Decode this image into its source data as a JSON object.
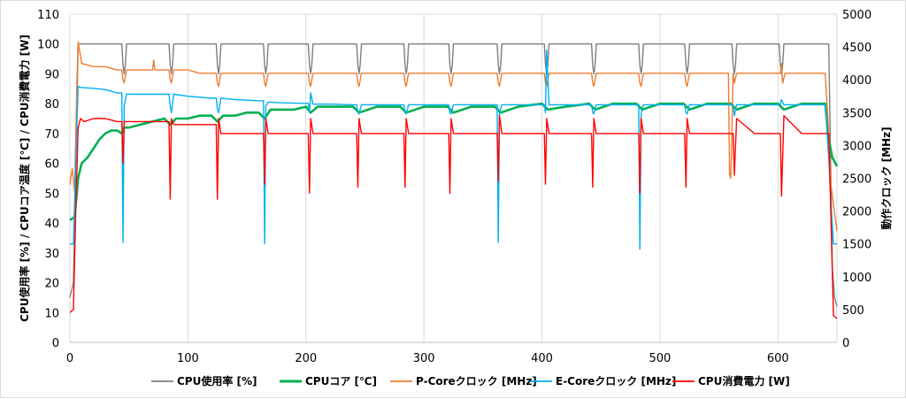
{
  "chart_data": {
    "type": "line",
    "title": "",
    "xlabel": "",
    "ylabel_left": "CPU使用率 [%] / CPUコア温度 [℃] / CPU消費電力 [W]",
    "ylabel_right": "動作クロック [MHz]",
    "xlim": [
      0,
      650
    ],
    "ylim_left": [
      0,
      110
    ],
    "ylim_right": [
      0,
      5000
    ],
    "x_ticks": [
      0,
      100,
      200,
      300,
      400,
      500,
      600
    ],
    "y_left_ticks": [
      0,
      10,
      20,
      30,
      40,
      50,
      60,
      70,
      80,
      90,
      100,
      110
    ],
    "y_right_ticks": [
      0,
      500,
      1000,
      1500,
      2000,
      2500,
      3000,
      3500,
      4000,
      4500,
      5000
    ],
    "grid": "vertical-only",
    "legend_position": "bottom",
    "cycle_starts": [
      5,
      46,
      86,
      126,
      166,
      204,
      245,
      285,
      323,
      364,
      404,
      444,
      484,
      523,
      563,
      603,
      645
    ],
    "series": [
      {
        "name": "CPU使用率 [%]",
        "axis": "left",
        "color": "#7f7f7f",
        "x": [
          0,
          3,
          5,
          7,
          44,
          45,
          46,
          47,
          48,
          84,
          85,
          86,
          87,
          88,
          124,
          125,
          126,
          127,
          128,
          164,
          165,
          166,
          167,
          168,
          202,
          203,
          204,
          205,
          206,
          243,
          244,
          245,
          246,
          247,
          283,
          284,
          285,
          286,
          287,
          321,
          322,
          323,
          324,
          325,
          362,
          363,
          364,
          365,
          366,
          402,
          403,
          404,
          405,
          406,
          442,
          443,
          444,
          445,
          446,
          482,
          483,
          484,
          485,
          486,
          521,
          522,
          523,
          524,
          525,
          561,
          562,
          563,
          564,
          565,
          601,
          602,
          603,
          604,
          605,
          643,
          646,
          648,
          650
        ],
        "values": [
          15,
          20,
          60,
          100,
          100,
          93,
          90,
          93,
          100,
          100,
          93,
          90,
          93,
          100,
          100,
          93,
          90,
          93,
          100,
          100,
          93,
          90,
          93,
          100,
          100,
          93,
          90,
          93,
          100,
          100,
          93,
          90,
          93,
          100,
          100,
          93,
          90,
          93,
          100,
          100,
          93,
          90,
          93,
          100,
          100,
          93,
          90,
          93,
          100,
          100,
          93,
          90,
          93,
          100,
          100,
          93,
          90,
          93,
          100,
          100,
          93,
          90,
          93,
          100,
          100,
          93,
          90,
          93,
          100,
          100,
          93,
          90,
          93,
          100,
          100,
          93,
          90,
          93,
          100,
          100,
          25,
          15,
          12
        ]
      },
      {
        "name": "CPUコア [℃]",
        "axis": "left",
        "color": "#00b050",
        "x": [
          0,
          4,
          7,
          10,
          15,
          20,
          25,
          30,
          35,
          40,
          44,
          46,
          50,
          60,
          70,
          80,
          85,
          90,
          100,
          110,
          120,
          125,
          130,
          140,
          150,
          160,
          165,
          170,
          180,
          190,
          200,
          204,
          210,
          220,
          240,
          245,
          260,
          280,
          285,
          300,
          320,
          325,
          340,
          360,
          365,
          380,
          400,
          405,
          420,
          440,
          445,
          460,
          480,
          485,
          500,
          520,
          525,
          540,
          560,
          565,
          580,
          600,
          605,
          620,
          640,
          643,
          646,
          650
        ],
        "values": [
          41,
          42,
          55,
          60,
          62,
          65,
          68,
          70,
          71,
          71,
          70,
          72,
          72,
          73,
          74,
          75,
          73,
          75,
          75,
          76,
          76,
          74,
          76,
          76,
          77,
          77,
          75,
          78,
          78,
          78,
          79,
          77,
          79,
          79,
          79,
          77,
          79,
          79,
          77,
          79,
          79,
          77,
          79,
          79,
          77,
          79,
          80,
          78,
          79,
          80,
          78,
          80,
          80,
          78,
          80,
          80,
          78,
          80,
          80,
          78,
          80,
          80,
          78,
          80,
          80,
          68,
          62,
          59
        ]
      },
      {
        "name": "P-Coreクロック [MHz]",
        "axis": "right",
        "color": "#ed7d31",
        "x": [
          0,
          2,
          4,
          6,
          7,
          10,
          20,
          30,
          40,
          44,
          45,
          46,
          48,
          60,
          70,
          71,
          72,
          80,
          84,
          85,
          86,
          88,
          100,
          110,
          120,
          124,
          125,
          126,
          128,
          140,
          150,
          160,
          164,
          165,
          166,
          168,
          180,
          190,
          200,
          202,
          203,
          204,
          206,
          220,
          240,
          243,
          244,
          245,
          247,
          260,
          280,
          283,
          284,
          285,
          287,
          300,
          320,
          321,
          322,
          323,
          325,
          340,
          360,
          362,
          363,
          364,
          366,
          380,
          400,
          402,
          403,
          404,
          406,
          420,
          440,
          442,
          443,
          444,
          446,
          460,
          480,
          482,
          483,
          484,
          486,
          500,
          520,
          521,
          522,
          523,
          525,
          540,
          558,
          559,
          560,
          562,
          563,
          565,
          580,
          600,
          602,
          603,
          604,
          606,
          620,
          640,
          643,
          645,
          647,
          650
        ],
        "values": [
          2400,
          2650,
          2300,
          4000,
          4580,
          4250,
          4200,
          4200,
          4150,
          4150,
          4000,
          3950,
          4150,
          4150,
          4150,
          4300,
          4150,
          4150,
          4150,
          4000,
          3950,
          4150,
          4150,
          4100,
          4100,
          4100,
          3950,
          3900,
          4100,
          4100,
          4100,
          4100,
          4100,
          3950,
          3900,
          4100,
          4100,
          4100,
          4100,
          4100,
          3950,
          3900,
          4100,
          4100,
          4100,
          4100,
          3950,
          3900,
          4100,
          4100,
          4100,
          4100,
          3950,
          3900,
          4100,
          4100,
          4100,
          4100,
          3950,
          3900,
          4100,
          4100,
          4100,
          4100,
          3950,
          3900,
          4100,
          4100,
          4100,
          4100,
          3950,
          3900,
          4100,
          4100,
          4100,
          4100,
          3950,
          3900,
          4100,
          4100,
          4100,
          4100,
          3950,
          3900,
          4100,
          4100,
          4100,
          4100,
          3950,
          3900,
          4100,
          4100,
          4100,
          2550,
          2500,
          4100,
          3950,
          4100,
          4100,
          4100,
          4100,
          4250,
          3950,
          4100,
          4100,
          4100,
          3200,
          2400,
          2100,
          1700
        ]
      },
      {
        "name": "E-Coreクロック [MHz]",
        "axis": "right",
        "color": "#00b0f0",
        "x": [
          0,
          3,
          5,
          7,
          10,
          20,
          30,
          40,
          44,
          45,
          46,
          48,
          60,
          80,
          84,
          85,
          86,
          88,
          100,
          120,
          124,
          125,
          126,
          128,
          140,
          160,
          164,
          165,
          166,
          168,
          180,
          200,
          202,
          203,
          204,
          206,
          220,
          240,
          243,
          244,
          245,
          247,
          260,
          280,
          283,
          284,
          285,
          287,
          300,
          320,
          321,
          322,
          323,
          325,
          340,
          360,
          362,
          363,
          364,
          366,
          380,
          400,
          402,
          403,
          404,
          406,
          420,
          440,
          442,
          443,
          444,
          446,
          460,
          480,
          482,
          483,
          484,
          486,
          500,
          520,
          521,
          522,
          523,
          525,
          540,
          560,
          562,
          563,
          565,
          580,
          600,
          602,
          603,
          605,
          620,
          640,
          643,
          645,
          647,
          650
        ],
        "values": [
          1500,
          1500,
          2800,
          3900,
          3880,
          3870,
          3850,
          3800,
          3800,
          1520,
          3600,
          3780,
          3780,
          3780,
          3780,
          3600,
          3500,
          3780,
          3750,
          3720,
          3720,
          3550,
          3500,
          3720,
          3700,
          3680,
          3680,
          1500,
          3600,
          3660,
          3650,
          3640,
          3640,
          3500,
          3800,
          3630,
          3630,
          3620,
          3620,
          3500,
          3480,
          3620,
          3620,
          3620,
          3620,
          3500,
          3480,
          3620,
          3620,
          3620,
          3620,
          3500,
          3480,
          3620,
          3620,
          3620,
          3620,
          1520,
          3480,
          3620,
          3620,
          3620,
          3620,
          3500,
          4450,
          3620,
          3620,
          3620,
          3620,
          3500,
          3480,
          3620,
          3620,
          3620,
          3620,
          1420,
          3480,
          3620,
          3620,
          3620,
          3620,
          3500,
          3480,
          3620,
          3620,
          3620,
          3620,
          3450,
          3620,
          3620,
          3620,
          3620,
          3700,
          3620,
          3620,
          3620,
          2800,
          2100,
          1500,
          1500
        ]
      },
      {
        "name": "CPU消費電力 [W]",
        "axis": "left",
        "color": "#ff0000",
        "x": [
          0,
          3,
          5,
          7,
          9,
          12,
          20,
          30,
          40,
          44,
          45,
          46,
          48,
          60,
          80,
          84,
          85,
          86,
          88,
          100,
          120,
          124,
          125,
          126,
          128,
          140,
          160,
          164,
          165,
          166,
          168,
          180,
          200,
          202,
          203,
          204,
          206,
          220,
          240,
          243,
          244,
          245,
          247,
          260,
          280,
          283,
          284,
          285,
          287,
          300,
          320,
          321,
          322,
          323,
          325,
          340,
          360,
          362,
          363,
          364,
          366,
          380,
          400,
          402,
          403,
          404,
          406,
          420,
          440,
          442,
          443,
          444,
          446,
          460,
          480,
          482,
          483,
          484,
          486,
          500,
          520,
          521,
          522,
          523,
          525,
          540,
          560,
          562,
          563,
          565,
          580,
          600,
          602,
          603,
          605,
          620,
          640,
          643,
          645,
          647,
          650
        ],
        "values": [
          10,
          11,
          45,
          72,
          75,
          74,
          75,
          75,
          74,
          74,
          60,
          74,
          74,
          74,
          74,
          74,
          48,
          75,
          73,
          73,
          73,
          73,
          48,
          75,
          70,
          70,
          70,
          70,
          53,
          75,
          70,
          70,
          70,
          70,
          50,
          75,
          70,
          70,
          70,
          70,
          52,
          75,
          70,
          70,
          70,
          70,
          52,
          75,
          70,
          70,
          70,
          70,
          50,
          75,
          70,
          70,
          70,
          70,
          54,
          76,
          70,
          70,
          70,
          70,
          53,
          75,
          70,
          70,
          70,
          70,
          52,
          75,
          70,
          70,
          70,
          70,
          50,
          75,
          70,
          70,
          70,
          70,
          52,
          75,
          70,
          70,
          70,
          70,
          56,
          75,
          70,
          70,
          70,
          49,
          76,
          70,
          70,
          70,
          40,
          9,
          8
        ]
      }
    ]
  }
}
